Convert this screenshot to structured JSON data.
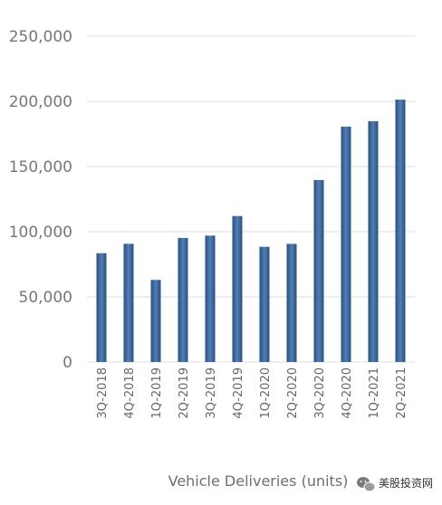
{
  "chart_data": {
    "type": "bar",
    "categories": [
      "3Q-2018",
      "4Q-2018",
      "1Q-2019",
      "2Q-2019",
      "3Q-2019",
      "4Q-2019",
      "1Q-2020",
      "2Q-2020",
      "3Q-2020",
      "4Q-2020",
      "1Q-2021",
      "2Q-2021"
    ],
    "values": [
      83500,
      90700,
      63000,
      95200,
      97000,
      112000,
      88400,
      90650,
      139600,
      180600,
      184800,
      201300
    ],
    "title": "",
    "xlabel": "Vehicle Deliveries (units)",
    "ylabel": "",
    "ylim": [
      0,
      250000
    ],
    "yticks": [
      "0",
      "50,000",
      "100,000",
      "150,000",
      "200,000",
      "250,000"
    ],
    "grid": true,
    "legend": "none",
    "colors": {
      "bar_dark": "#2b4f7e",
      "bar_light": "#4f7fb8",
      "grid": "#dddddd"
    }
  },
  "watermark": {
    "text": "美股投资网",
    "icon": "wechat-icon"
  }
}
